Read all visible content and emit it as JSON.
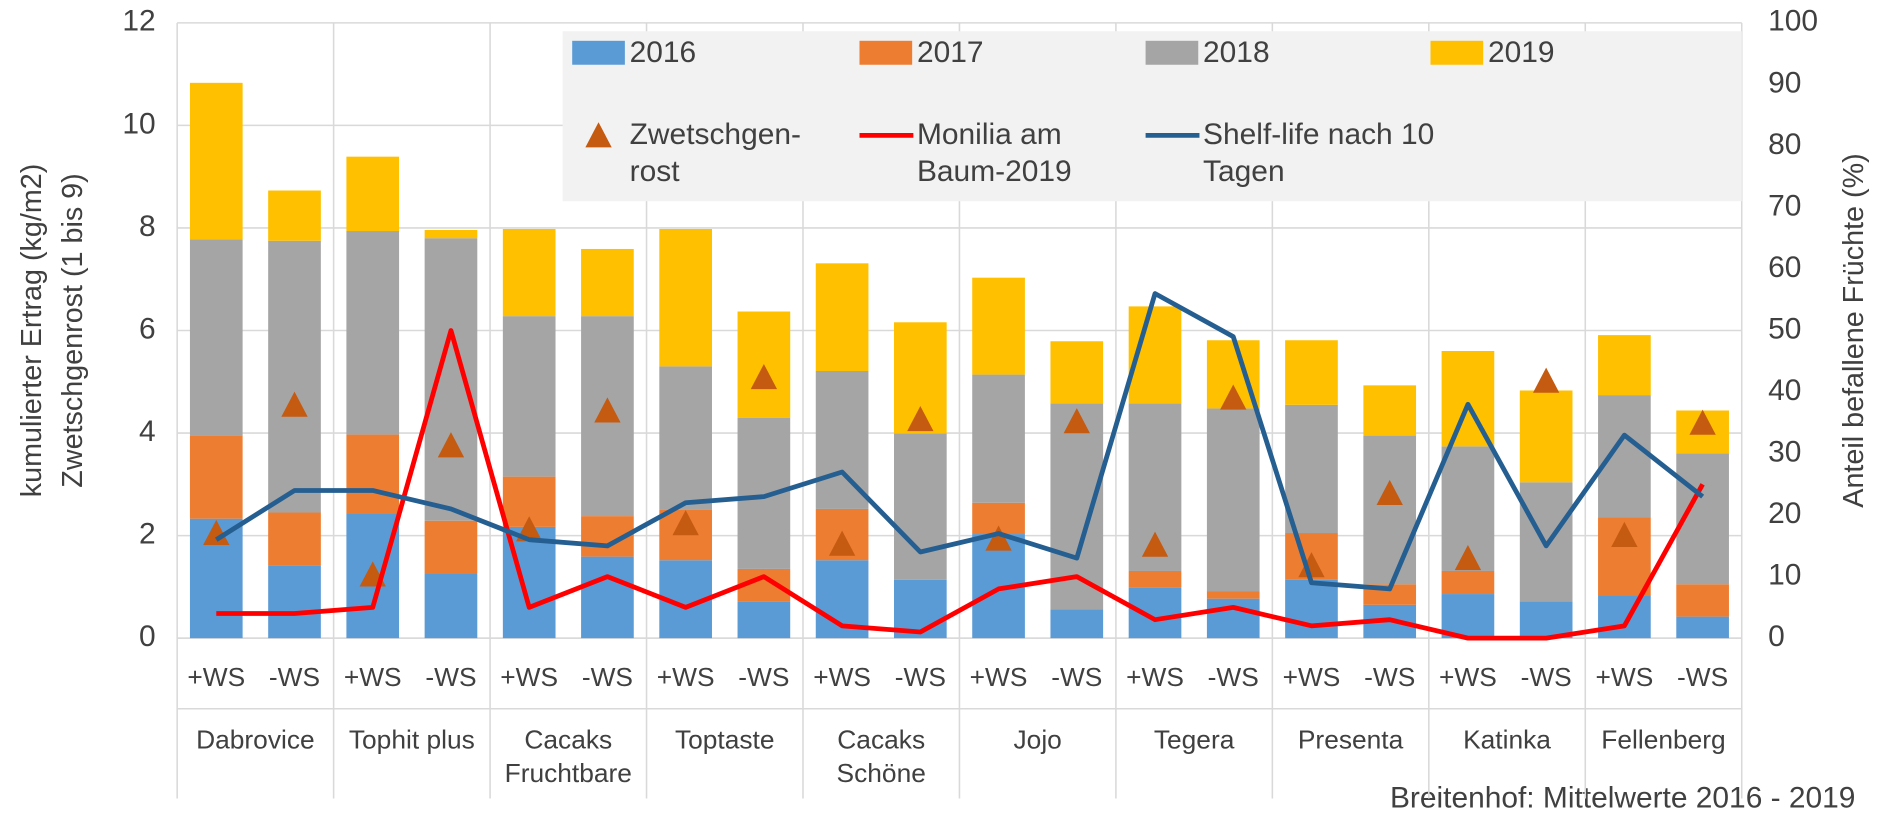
{
  "chart_data": {
    "type": "bar",
    "stacked": true,
    "categories": [
      "+WS",
      "-WS",
      "+WS",
      "-WS",
      "+WS",
      "-WS",
      "+WS",
      "-WS",
      "+WS",
      "-WS",
      "+WS",
      "-WS",
      "+WS",
      "-WS",
      "+WS",
      "-WS",
      "+WS",
      "-WS",
      "+WS",
      "-WS"
    ],
    "groups": [
      "Dabrovice",
      "Tophit plus",
      "Cacaks Fruchtbare",
      "Toptaste",
      "Cacaks Schöne",
      "Jojo",
      "Tegera",
      "Presenta",
      "Katinka",
      "Fellenberg"
    ],
    "y_label": [
      "kumulierter Ertrag  (kg/m2)",
      "Zwetschgenrost (1 bis 9)"
    ],
    "y2_label": "Anteil befallene Früchte (%)",
    "note": "Breitenhof: Mittelwerte 2016 - 2019",
    "ylim": [
      0,
      12
    ],
    "yticks": [
      0,
      2,
      4,
      6,
      8,
      10,
      12
    ],
    "y2lim": [
      0,
      100
    ],
    "y2ticks": [
      0,
      10,
      20,
      30,
      40,
      50,
      60,
      70,
      80,
      90,
      100
    ],
    "grid": true,
    "series": [
      {
        "name": "2016",
        "type": "bar",
        "color": "#5b9bd5",
        "values": [
          2.33,
          1.42,
          2.43,
          1.26,
          2.17,
          1.59,
          1.52,
          0.72,
          1.52,
          1.14,
          2.03,
          0.56,
          0.98,
          0.77,
          1.14,
          0.65,
          0.86,
          0.72,
          0.84,
          0.42
        ]
      },
      {
        "name": "2017",
        "type": "bar",
        "color": "#ed7d31",
        "values": [
          1.62,
          1.03,
          1.54,
          1.03,
          0.98,
          0.79,
          0.98,
          0.63,
          1.0,
          0,
          0.61,
          0,
          0.33,
          0.14,
          0.91,
          0.4,
          0.45,
          0,
          1.52,
          0.63
        ]
      },
      {
        "name": "2018",
        "type": "bar",
        "color": "#a5a5a5",
        "values": [
          3.83,
          5.3,
          3.97,
          5.51,
          3.13,
          3.9,
          2.8,
          2.95,
          2.69,
          2.85,
          2.5,
          4.02,
          3.27,
          3.57,
          2.5,
          2.9,
          2.43,
          2.32,
          2.38,
          2.55
        ]
      },
      {
        "name": "2019",
        "type": "bar",
        "color": "#ffc000",
        "values": [
          3.05,
          0.98,
          1.45,
          0.16,
          1.7,
          1.31,
          2.68,
          2.07,
          2.1,
          2.17,
          1.89,
          1.21,
          1.89,
          1.33,
          1.26,
          0.98,
          1.86,
          1.79,
          1.17,
          0.84
        ]
      },
      {
        "name": "Zwetschgen-rost",
        "type": "scatter",
        "color": "#c55a11",
        "values": [
          2.05,
          4.55,
          1.24,
          3.76,
          2.12,
          4.44,
          2.24,
          5.09,
          1.84,
          4.27,
          1.94,
          4.23,
          1.82,
          4.69,
          1.42,
          2.83,
          1.56,
          5.02,
          2.01,
          4.2
        ]
      },
      {
        "name": "Monilia am Baum-2019",
        "type": "line",
        "axis": "y2",
        "color": "#ff0000",
        "values": [
          4,
          4,
          5,
          50,
          5,
          10,
          5,
          10,
          2,
          1,
          8,
          10,
          3,
          5,
          2,
          3,
          0,
          0,
          2,
          25
        ]
      },
      {
        "name": "Shelf-life nach 10 Tagen",
        "type": "line",
        "axis": "y2",
        "color": "#255e91",
        "values": [
          16,
          24,
          24,
          21,
          16,
          15,
          22,
          23,
          27,
          14,
          17,
          13,
          56,
          49,
          9,
          8,
          38,
          15,
          33,
          23
        ]
      }
    ]
  }
}
